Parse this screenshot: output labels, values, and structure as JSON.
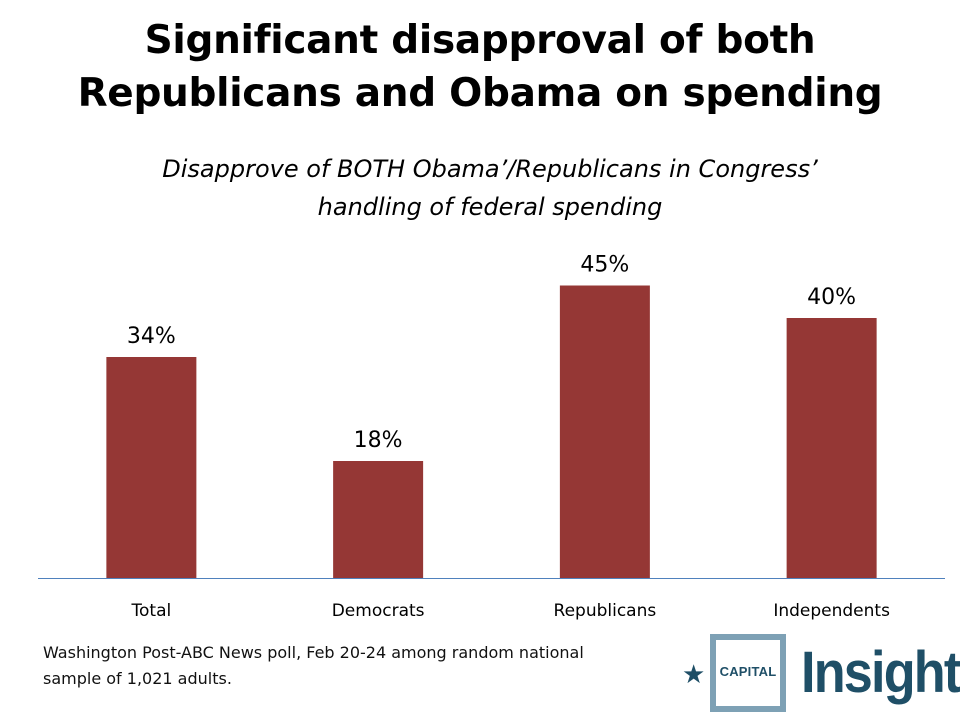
{
  "title_lines": [
    "Significant disapproval of both",
    "Republicans and Obama on spending"
  ],
  "subtitle_lines": [
    "Disapprove of BOTH Obama’/Republicans  in Congress’",
    "handling  of federal spending"
  ],
  "source_lines": [
    "Washington Post-ABC News poll, Feb 20-24 among random national",
    "sample of 1,021 adults."
  ],
  "logo": {
    "star_icon": "★",
    "box_text": "CAPITAL",
    "word": "Insight"
  },
  "colors": {
    "bar": "#953735",
    "axis": "#4f81bd",
    "logo": "#1f4f67",
    "logo_frame": "#7ea1b5"
  },
  "chart_data": {
    "type": "bar",
    "title": "Significant disapproval of both Republicans and Obama on spending",
    "subtitle": "Disapprove of BOTH Obama’/Republicans in Congress’ handling of federal spending",
    "categories": [
      "Total",
      "Democrats",
      "Republicans",
      "Independents"
    ],
    "values": [
      34,
      18,
      45,
      40
    ],
    "data_labels": [
      "34%",
      "18%",
      "45%",
      "40%"
    ],
    "xlabel": "",
    "ylabel": "",
    "ylim": [
      0,
      50
    ],
    "grid": false,
    "legend": "none",
    "units": "percent"
  }
}
